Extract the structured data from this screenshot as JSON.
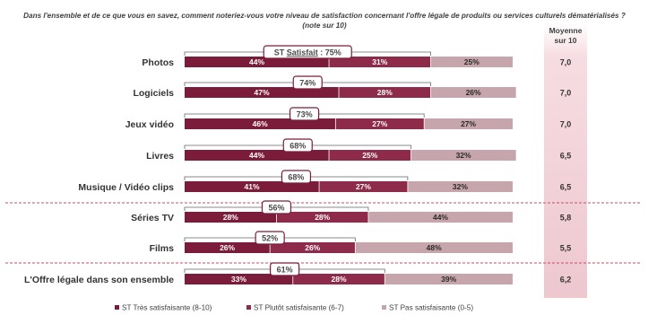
{
  "question": "Dans l'ensemble et de ce que vous en savez, comment noteriez-vous votre niveau de satisfaction concernant l'offre légale de produits ou services culturels dématérialisés ?",
  "question_note": "(note sur 10)",
  "avg_header_line1": "Moyenne",
  "avg_header_line2": "sur 10",
  "st_satisfait_prefix": "ST ",
  "st_satisfait_word": "Satisfait",
  "st_satisfait_suffix": " : ",
  "colors": {
    "tres": "#7b1c3a",
    "plutot": "#8e2a4a",
    "pas": "#c6a5ac",
    "box_border": "#7b1c3a",
    "avg_col": "#f2d3d9"
  },
  "chart_data": {
    "type": "bar",
    "orientation": "horizontal-stacked-100",
    "categories": [
      "Photos",
      "Logiciels",
      "Jeux vidéo",
      "Livres",
      "Musique / Vidéo clips",
      "Séries TV",
      "Films",
      "L'Offre légale dans son ensemble"
    ],
    "series": [
      {
        "name": "ST Très satisfaisante (8-10)",
        "values": [
          44,
          47,
          46,
          44,
          41,
          28,
          26,
          33
        ]
      },
      {
        "name": "ST Plutôt satisfaisante (6-7)",
        "values": [
          31,
          28,
          27,
          25,
          27,
          28,
          26,
          28
        ]
      },
      {
        "name": "ST Pas satisfaisante (0-5)",
        "values": [
          25,
          26,
          27,
          32,
          32,
          44,
          48,
          39
        ]
      }
    ],
    "st_satisfait": [
      "75%",
      "74%",
      "73%",
      "68%",
      "68%",
      "56%",
      "52%",
      "61%"
    ],
    "moyenne": [
      "7,0",
      "7,0",
      "7,0",
      "6,5",
      "6,5",
      "5,8",
      "5,5",
      "6,2"
    ]
  }
}
